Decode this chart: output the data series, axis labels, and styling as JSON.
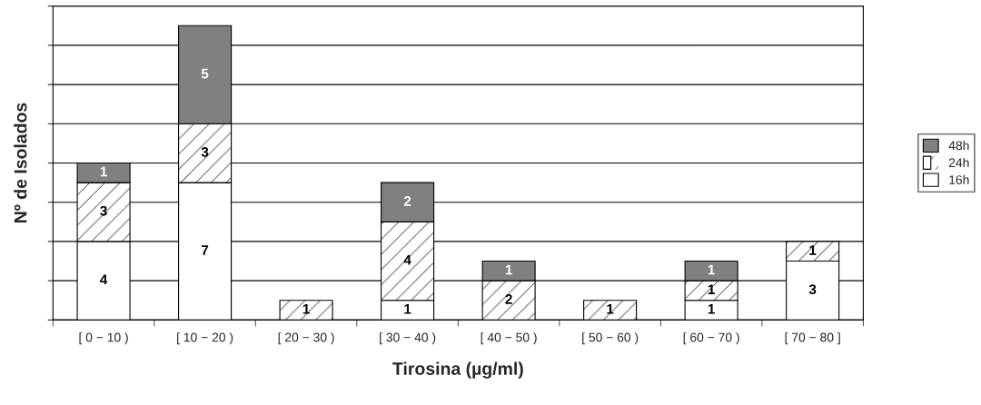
{
  "chart_data": {
    "type": "bar",
    "stacked": true,
    "xlabel": "Tirosina (µg/ml)",
    "ylabel": "Nº de Isolados",
    "categories": [
      "[ 0 − 10 )",
      "[ 10 − 20 )",
      "[ 20 − 30 )",
      "[ 30 − 40 )",
      "[ 40 − 50 )",
      "[ 50 − 60 )",
      "[ 60 − 70 )",
      "[ 70 − 80 ]"
    ],
    "series": [
      {
        "name": "16h",
        "color": "#ffffff",
        "values": [
          4,
          7,
          null,
          1,
          null,
          null,
          1,
          3
        ]
      },
      {
        "name": "24h",
        "color": "#ffffff",
        "values": [
          3,
          3,
          1,
          4,
          2,
          1,
          1,
          1
        ]
      },
      {
        "name": "48h",
        "color": "#808080",
        "values": [
          1,
          5,
          null,
          2,
          1,
          null,
          1,
          null
        ]
      }
    ],
    "ylim": [
      0,
      16
    ],
    "yticks": [
      {
        "value": 0,
        "label": null
      },
      {
        "value": 2,
        "label": null
      },
      {
        "value": 4,
        "label": null
      },
      {
        "value": 6,
        "label": null
      },
      {
        "value": 8,
        "label": null
      },
      {
        "value": 10,
        "label": null
      },
      {
        "value": 12,
        "label": null
      },
      {
        "value": 14,
        "label": null
      },
      {
        "value": 16,
        "label": null
      }
    ],
    "grid": "y",
    "legend": "right",
    "data_labels": true,
    "tick_labels": "x"
  }
}
